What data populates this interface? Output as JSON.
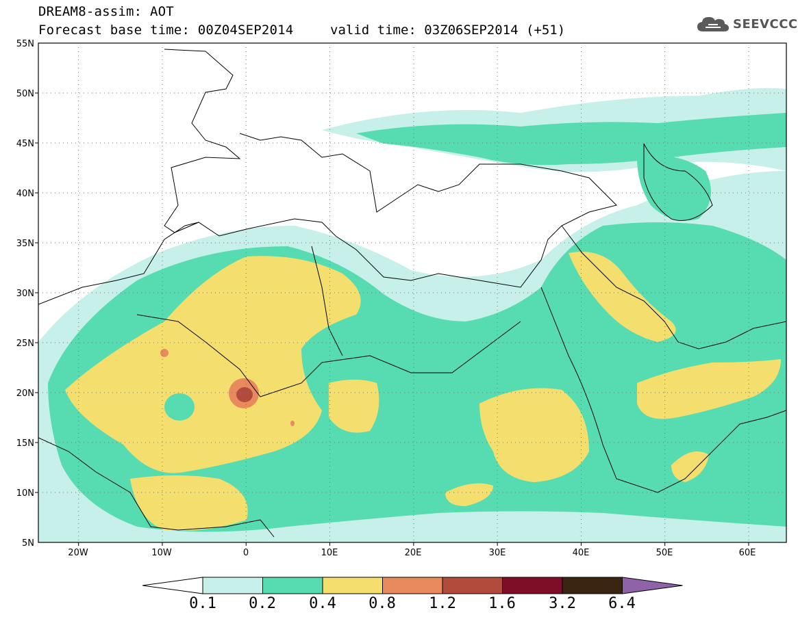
{
  "title": {
    "line1": "DREAM8-assim: AOT",
    "line2": "Forecast base time: 00Z04SEP2014",
    "valid": "valid time: 03Z06SEP2014 (+51)"
  },
  "logo": {
    "text": "SEEVCCC",
    "icon": "cloud-icon"
  },
  "axes": {
    "lat_labels": [
      "55N",
      "50N",
      "45N",
      "40N",
      "35N",
      "30N",
      "25N",
      "20N",
      "15N",
      "10N",
      "5N"
    ],
    "lon_labels": [
      "20W",
      "10W",
      "0",
      "10E",
      "20E",
      "30E",
      "40E",
      "50E",
      "60E"
    ]
  },
  "colorbar": {
    "colors": [
      "#ffffff",
      "#c7f0ea",
      "#57dcb2",
      "#f4df6e",
      "#e98a5e",
      "#b24b3b",
      "#7e0d27",
      "#3a2412",
      "#8e63a8"
    ],
    "labels": [
      "0.1",
      "0.2",
      "0.4",
      "0.8",
      "1.2",
      "1.6",
      "3.2",
      "6.4"
    ]
  }
}
